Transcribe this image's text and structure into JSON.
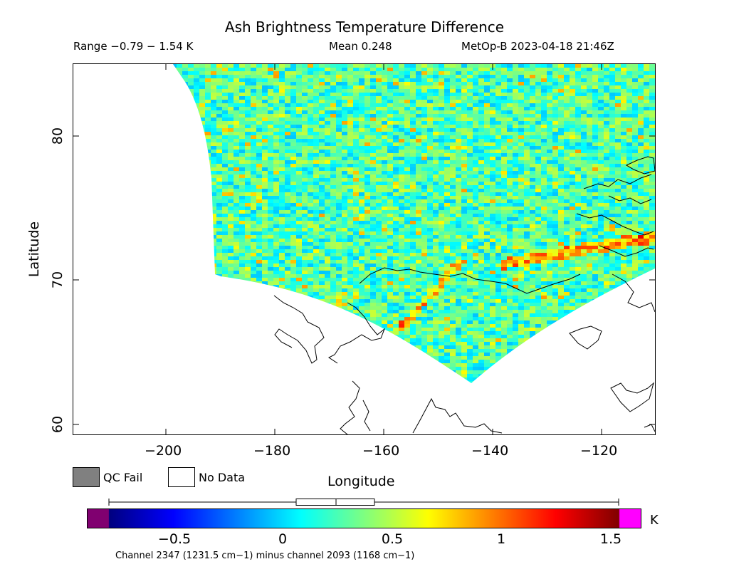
{
  "title": "Ash Brightness Temperature Difference",
  "header": {
    "range": "Range −0.79 − 1.54 K",
    "mean": "Mean 0.248",
    "satellite_time": "MetOp-B 2023-04-18 21:46Z"
  },
  "axes": {
    "xlabel": "Longitude",
    "ylabel": "Latitude",
    "x_ticks": [
      "−200",
      "−180",
      "−160",
      "−140",
      "−120"
    ],
    "y_ticks": [
      "60",
      "70",
      "80"
    ]
  },
  "legend": {
    "qc_fail": "QC Fail",
    "no_data": "No Data",
    "qc_fail_color": "#808080"
  },
  "colorbar": {
    "unit": "K",
    "ticks": [
      "−0.5",
      "0",
      "0.5",
      "1",
      "1.5"
    ],
    "range": [
      -0.9,
      1.6
    ],
    "box_stats": {
      "min": -0.79,
      "q1": 0.06,
      "median": 0.248,
      "q3": 0.42,
      "max": 1.54
    }
  },
  "footer": "Channel 2347 (1231.5 cm−1) minus channel 2093 (1168 cm−1)",
  "map": {
    "lon_range": [
      -217,
      -110
    ],
    "lat_range": [
      59.3,
      85
    ],
    "swath_mean": 0.248,
    "coastlines": "black"
  }
}
